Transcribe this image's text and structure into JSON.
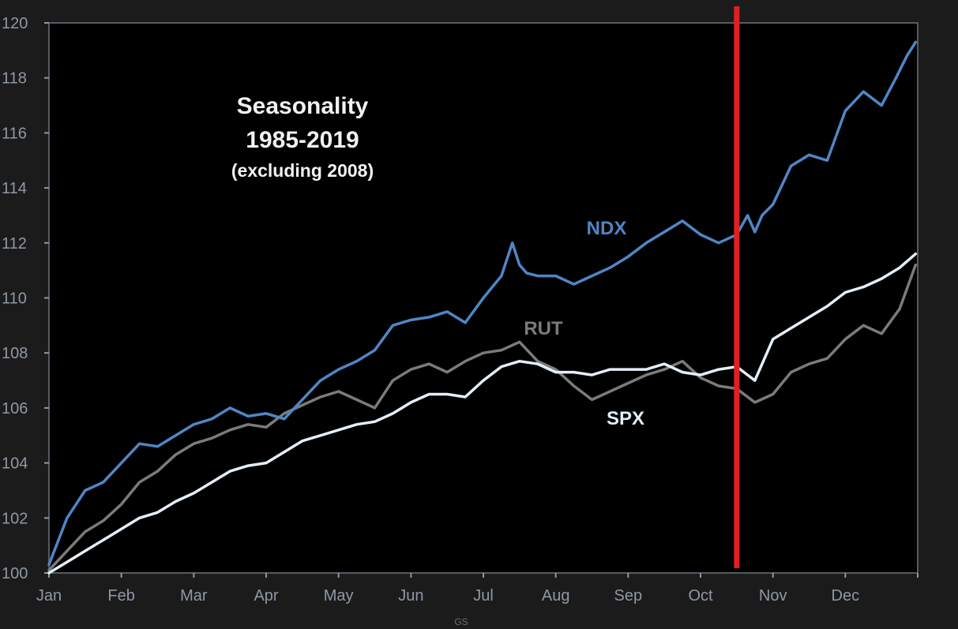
{
  "chart_data": {
    "type": "line",
    "title": [
      "Seasonality",
      "1985-2019"
    ],
    "subtitle": "(excluding 2008)",
    "xlabel": "",
    "ylabel": "",
    "categories": [
      "Jan",
      "Feb",
      "Mar",
      "Apr",
      "May",
      "Jun",
      "Jul",
      "Aug",
      "Sep",
      "Oct",
      "Nov",
      "Dec"
    ],
    "yticks": [
      "100",
      "102",
      "104",
      "106",
      "108",
      "110",
      "112",
      "114",
      "116",
      "118",
      "120"
    ],
    "ylim": [
      100,
      120
    ],
    "grid": false,
    "legend": "inline labels",
    "marker": {
      "label": "",
      "month_position": 9.5,
      "color": "#e02020"
    },
    "source": "GS",
    "series": [
      {
        "name": "NDX",
        "color": "#4f86c6",
        "x": [
          0,
          0.25,
          0.5,
          0.75,
          1.0,
          1.25,
          1.5,
          1.75,
          2.0,
          2.25,
          2.5,
          2.75,
          3.0,
          3.25,
          3.5,
          3.75,
          4.0,
          4.25,
          4.5,
          4.75,
          5.0,
          5.25,
          5.5,
          5.75,
          6.0,
          6.25,
          6.4,
          6.5,
          6.6,
          6.75,
          7.0,
          7.25,
          7.5,
          7.75,
          8.0,
          8.25,
          8.5,
          8.75,
          9.0,
          9.25,
          9.5,
          9.65,
          9.75,
          9.85,
          10.0,
          10.25,
          10.5,
          10.75,
          11.0,
          11.25,
          11.5,
          11.7,
          11.85,
          11.97
        ],
        "y": [
          100.3,
          102.0,
          103.0,
          103.3,
          104.0,
          104.7,
          104.6,
          105.0,
          105.4,
          105.6,
          106.0,
          105.7,
          105.8,
          105.6,
          106.3,
          107.0,
          107.4,
          107.7,
          108.1,
          109.0,
          109.2,
          109.3,
          109.5,
          109.1,
          110.0,
          110.8,
          112.0,
          111.2,
          110.9,
          110.8,
          110.8,
          110.5,
          110.8,
          111.1,
          111.5,
          112.0,
          112.4,
          112.8,
          112.3,
          112.0,
          112.3,
          113.0,
          112.4,
          113.0,
          113.4,
          114.8,
          115.2,
          115.0,
          116.8,
          117.5,
          117.0,
          118.0,
          118.8,
          119.3
        ]
      },
      {
        "name": "RUT",
        "color": "#7b7b7b",
        "x": [
          0,
          0.25,
          0.5,
          0.75,
          1.0,
          1.25,
          1.5,
          1.75,
          2.0,
          2.25,
          2.5,
          2.75,
          3.0,
          3.25,
          3.5,
          3.75,
          4.0,
          4.25,
          4.5,
          4.75,
          5.0,
          5.25,
          5.5,
          5.75,
          6.0,
          6.25,
          6.5,
          6.75,
          7.0,
          7.25,
          7.5,
          7.75,
          8.0,
          8.25,
          8.5,
          8.75,
          9.0,
          9.25,
          9.5,
          9.75,
          10.0,
          10.25,
          10.5,
          10.75,
          11.0,
          11.25,
          11.5,
          11.75,
          11.97
        ],
        "y": [
          100.1,
          100.8,
          101.5,
          101.9,
          102.5,
          103.3,
          103.7,
          104.3,
          104.7,
          104.9,
          105.2,
          105.4,
          105.3,
          105.8,
          106.1,
          106.4,
          106.6,
          106.3,
          106.0,
          107.0,
          107.4,
          107.6,
          107.3,
          107.7,
          108.0,
          108.1,
          108.4,
          107.7,
          107.4,
          106.8,
          106.3,
          106.6,
          106.9,
          107.2,
          107.4,
          107.7,
          107.1,
          106.8,
          106.7,
          106.2,
          106.5,
          107.3,
          107.6,
          107.8,
          108.5,
          109.0,
          108.7,
          109.6,
          111.2
        ]
      },
      {
        "name": "SPX",
        "color": "#e4eef8",
        "x": [
          0,
          0.25,
          0.5,
          0.75,
          1.0,
          1.25,
          1.5,
          1.75,
          2.0,
          2.25,
          2.5,
          2.75,
          3.0,
          3.25,
          3.5,
          3.75,
          4.0,
          4.25,
          4.5,
          4.75,
          5.0,
          5.25,
          5.5,
          5.75,
          6.0,
          6.25,
          6.5,
          6.75,
          7.0,
          7.25,
          7.5,
          7.75,
          8.0,
          8.25,
          8.5,
          8.75,
          9.0,
          9.25,
          9.5,
          9.75,
          10.0,
          10.25,
          10.5,
          10.75,
          11.0,
          11.25,
          11.5,
          11.75,
          11.97
        ],
        "y": [
          100.0,
          100.4,
          100.8,
          101.2,
          101.6,
          102.0,
          102.2,
          102.6,
          102.9,
          103.3,
          103.7,
          103.9,
          104.0,
          104.4,
          104.8,
          105.0,
          105.2,
          105.4,
          105.5,
          105.8,
          106.2,
          106.5,
          106.5,
          106.4,
          107.0,
          107.5,
          107.7,
          107.6,
          107.3,
          107.3,
          107.2,
          107.4,
          107.4,
          107.4,
          107.6,
          107.3,
          107.2,
          107.4,
          107.5,
          107.0,
          108.5,
          108.9,
          109.3,
          109.7,
          110.2,
          110.4,
          110.7,
          111.1,
          111.6
        ]
      }
    ]
  }
}
